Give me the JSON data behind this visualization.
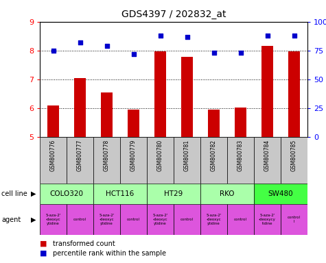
{
  "title": "GDS4397 / 202832_at",
  "samples": [
    "GSM800776",
    "GSM800777",
    "GSM800778",
    "GSM800779",
    "GSM800780",
    "GSM800781",
    "GSM800782",
    "GSM800783",
    "GSM800784",
    "GSM800785"
  ],
  "bar_values": [
    6.1,
    7.05,
    6.55,
    5.95,
    7.98,
    7.78,
    5.95,
    6.02,
    8.17,
    7.98
  ],
  "dot_values": [
    75,
    82,
    79,
    72,
    88,
    87,
    73,
    73,
    88,
    88
  ],
  "ylim": [
    5,
    9
  ],
  "yticks": [
    5,
    6,
    7,
    8,
    9
  ],
  "y2lim": [
    0,
    100
  ],
  "y2ticks": [
    0,
    25,
    50,
    75,
    100
  ],
  "y2ticklabels": [
    "0",
    "25",
    "50",
    "75",
    "100%"
  ],
  "bar_color": "#cc0000",
  "dot_color": "#0000cc",
  "cell_lines": [
    "COLO320",
    "HCT116",
    "HT29",
    "RKO",
    "SW480"
  ],
  "cell_line_spans": [
    [
      0,
      1
    ],
    [
      2,
      3
    ],
    [
      4,
      5
    ],
    [
      6,
      7
    ],
    [
      8,
      9
    ]
  ],
  "sample_bg_color": "#c8c8c8",
  "cell_line_color": "#aaffaa",
  "cell_line_sw480_color": "#44ff44",
  "agent_color": "#dd55dd",
  "agent_texts": [
    "5-aza-2'\n-deoxyc\nytidine",
    "control",
    "5-aza-2'\n-deoxyc\nytidine",
    "control",
    "5-aza-2'\n-deoxyc\nytidine",
    "control",
    "5-aza-2'\n-deoxyc\nytidine",
    "control",
    "5-aza-2'\n-deoxycy\ntidine",
    "control\nl"
  ],
  "legend_red_label": "transformed count",
  "legend_blue_label": "percentile rank within the sample",
  "cell_line_label": "cell line",
  "agent_label": "agent"
}
